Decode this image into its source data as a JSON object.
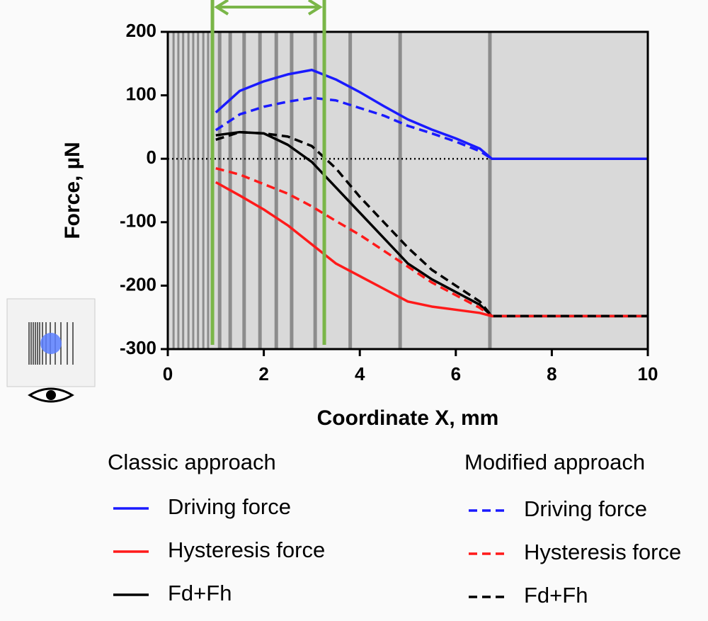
{
  "chart_data": {
    "type": "line",
    "xlabel": "Coordinate X, mm",
    "ylabel": "Force, µN",
    "xlim": [
      0,
      10
    ],
    "ylim": [
      -300,
      200
    ],
    "xticks": [
      0,
      2,
      4,
      6,
      8,
      10
    ],
    "yticks": [
      -300,
      -200,
      -100,
      0,
      100,
      200
    ],
    "reference_line": 0,
    "stripes": [
      0.12,
      0.22,
      0.32,
      0.43,
      0.53,
      0.63,
      0.74,
      0.84,
      1.08,
      1.3,
      1.59,
      1.92,
      2.26,
      2.58,
      3.07,
      3.8,
      4.84,
      6.71
    ],
    "highlight_x": [
      0.93,
      3.26
    ],
    "highlight_color": "#7ab648",
    "legend_groups": [
      "Classic approach",
      "Modified approach"
    ],
    "x": [
      1,
      1.5,
      2,
      2.5,
      3,
      3.5,
      4,
      4.5,
      5,
      5.5,
      6,
      6.5,
      6.75,
      10
    ],
    "series": [
      {
        "name": "Driving force",
        "color": "#1a1aff",
        "dashed": false,
        "group": 0,
        "values": [
          73,
          107,
          122,
          133,
          140,
          125,
          105,
          83,
          62,
          46,
          32,
          16,
          0,
          0
        ]
      },
      {
        "name": "Hysteresis force",
        "color": "#ff1a1a",
        "dashed": false,
        "group": 0,
        "values": [
          -37,
          -58,
          -80,
          -105,
          -135,
          -165,
          -185,
          -205,
          -225,
          -233,
          -238,
          -243,
          -248,
          -248
        ]
      },
      {
        "name": "Fd+Fh",
        "color": "#000000",
        "dashed": false,
        "group": 0,
        "values": [
          37,
          42,
          40,
          22,
          -5,
          -45,
          -85,
          -125,
          -165,
          -190,
          -210,
          -230,
          -248,
          -248
        ]
      },
      {
        "name": "Driving force",
        "color": "#1a1aff",
        "dashed": true,
        "group": 1,
        "values": [
          45,
          70,
          82,
          90,
          96,
          92,
          80,
          68,
          52,
          40,
          27,
          12,
          0,
          0
        ]
      },
      {
        "name": "Hysteresis force",
        "color": "#ff1a1a",
        "dashed": true,
        "group": 1,
        "values": [
          -15,
          -25,
          -40,
          -55,
          -75,
          -98,
          -120,
          -145,
          -170,
          -195,
          -215,
          -235,
          -248,
          -248
        ]
      },
      {
        "name": "Fd+Fh",
        "color": "#000000",
        "dashed": true,
        "group": 1,
        "values": [
          30,
          42,
          40,
          35,
          20,
          -15,
          -60,
          -100,
          -140,
          -175,
          -200,
          -225,
          -248,
          -248
        ]
      }
    ]
  }
}
